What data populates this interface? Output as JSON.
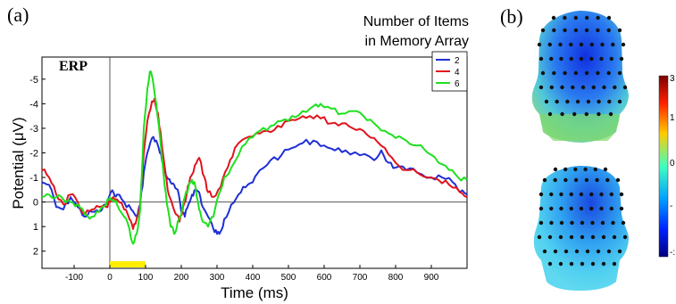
{
  "panels": {
    "a": "(a)",
    "b": "(b)"
  },
  "chart_data": {
    "type": "line",
    "title": "ERP",
    "xlabel": "Time (ms)",
    "ylabel": "Potential (μV)",
    "xlim": [
      -190,
      1000
    ],
    "ylim": [
      2.7,
      -5.9
    ],
    "y_axis_inverted": true,
    "x_ticks": [
      -100,
      0,
      100,
      200,
      300,
      400,
      500,
      600,
      700,
      800,
      900
    ],
    "x_tick_labels": [
      "-100",
      "0",
      "100",
      "200",
      "300",
      "400",
      "500",
      "600",
      "700",
      "800",
      "900"
    ],
    "y_ticks": [
      -5,
      -4,
      -3,
      -2,
      -1,
      0,
      1,
      2
    ],
    "y_tick_labels": [
      "-5",
      "-4",
      "-3",
      "-2",
      "-1",
      "0",
      "1",
      "2"
    ],
    "legend_title": [
      "Number of Items",
      "in Memory Array"
    ],
    "legend_position": "top-right",
    "stimulus_bar": {
      "start": 0,
      "end": 100,
      "color": "#ffee00"
    },
    "series": [
      {
        "name": "2",
        "color": "#1f2fd6",
        "points": [
          [
            -190,
            -0.8
          ],
          [
            -170,
            -0.7
          ],
          [
            -150,
            0.2
          ],
          [
            -130,
            0.3
          ],
          [
            -110,
            -0.2
          ],
          [
            -90,
            0.2
          ],
          [
            -70,
            0.6
          ],
          [
            -50,
            0.4
          ],
          [
            -30,
            0.4
          ],
          [
            -10,
            0.1
          ],
          [
            0,
            -0.3
          ],
          [
            10,
            -0.4
          ],
          [
            20,
            -0.3
          ],
          [
            40,
            0
          ],
          [
            60,
            0.3
          ],
          [
            75,
            0.6
          ],
          [
            85,
            0.1
          ],
          [
            95,
            -1.2
          ],
          [
            105,
            -2.0
          ],
          [
            118,
            -2.6
          ],
          [
            130,
            -2.5
          ],
          [
            140,
            -2.0
          ],
          [
            150,
            -1.6
          ],
          [
            160,
            -1.0
          ],
          [
            170,
            -0.8
          ],
          [
            180,
            -0.7
          ],
          [
            190,
            -0.5
          ],
          [
            200,
            0.4
          ],
          [
            210,
            0.6
          ],
          [
            220,
            0.1
          ],
          [
            230,
            -0.3
          ],
          [
            240,
            -0.5
          ],
          [
            250,
            -0.4
          ],
          [
            260,
            0.2
          ],
          [
            275,
            0.6
          ],
          [
            290,
            1.1
          ],
          [
            300,
            1.3
          ],
          [
            310,
            1.2
          ],
          [
            320,
            0.7
          ],
          [
            340,
            0.1
          ],
          [
            360,
            -0.3
          ],
          [
            380,
            -0.6
          ],
          [
            400,
            -0.8
          ],
          [
            420,
            -1.3
          ],
          [
            450,
            -1.7
          ],
          [
            480,
            -1.9
          ],
          [
            510,
            -2.2
          ],
          [
            540,
            -2.4
          ],
          [
            570,
            -2.5
          ],
          [
            600,
            -2.3
          ],
          [
            630,
            -2.1
          ],
          [
            660,
            -2.1
          ],
          [
            700,
            -1.9
          ],
          [
            740,
            -1.7
          ],
          [
            760,
            -2.1
          ],
          [
            780,
            -1.6
          ],
          [
            800,
            -1.4
          ],
          [
            830,
            -1.3
          ],
          [
            860,
            -1.2
          ],
          [
            900,
            -1.0
          ],
          [
            930,
            -1.0
          ],
          [
            960,
            -0.8
          ],
          [
            980,
            -0.4
          ],
          [
            1000,
            -0.3
          ]
        ]
      },
      {
        "name": "4",
        "color": "#e0141c",
        "points": [
          [
            -190,
            -1.3
          ],
          [
            -170,
            -1.0
          ],
          [
            -150,
            -0.3
          ],
          [
            -130,
            0.1
          ],
          [
            -110,
            -0.3
          ],
          [
            -90,
            0
          ],
          [
            -70,
            0.5
          ],
          [
            -50,
            0.3
          ],
          [
            -30,
            0.2
          ],
          [
            -10,
            0.2
          ],
          [
            0,
            0
          ],
          [
            10,
            -0.2
          ],
          [
            20,
            -0.1
          ],
          [
            40,
            0.3
          ],
          [
            55,
            0.7
          ],
          [
            65,
            1.1
          ],
          [
            75,
            0.7
          ],
          [
            85,
            0.1
          ],
          [
            95,
            -2.0
          ],
          [
            105,
            -3.3
          ],
          [
            118,
            -4.1
          ],
          [
            125,
            -4.2
          ],
          [
            135,
            -3.6
          ],
          [
            145,
            -2.4
          ],
          [
            155,
            -1.2
          ],
          [
            165,
            -0.3
          ],
          [
            175,
            0.1
          ],
          [
            185,
            0.5
          ],
          [
            195,
            0.8
          ],
          [
            205,
            0.2
          ],
          [
            215,
            -0.3
          ],
          [
            225,
            -1.0
          ],
          [
            238,
            -1.5
          ],
          [
            250,
            -1.8
          ],
          [
            265,
            -1.0
          ],
          [
            275,
            -0.4
          ],
          [
            290,
            -0.2
          ],
          [
            310,
            -0.6
          ],
          [
            330,
            -1.4
          ],
          [
            350,
            -2.2
          ],
          [
            380,
            -2.6
          ],
          [
            410,
            -2.8
          ],
          [
            440,
            -2.9
          ],
          [
            470,
            -3.1
          ],
          [
            500,
            -3.3
          ],
          [
            530,
            -3.4
          ],
          [
            560,
            -3.5
          ],
          [
            590,
            -3.4
          ],
          [
            620,
            -3.2
          ],
          [
            650,
            -3.2
          ],
          [
            680,
            -3.0
          ],
          [
            710,
            -2.9
          ],
          [
            740,
            -2.6
          ],
          [
            770,
            -2.2
          ],
          [
            800,
            -1.6
          ],
          [
            830,
            -1.3
          ],
          [
            860,
            -1.2
          ],
          [
            890,
            -1.0
          ],
          [
            920,
            -0.9
          ],
          [
            950,
            -0.7
          ],
          [
            980,
            -0.4
          ],
          [
            1000,
            -0.2
          ]
        ]
      },
      {
        "name": "6",
        "color": "#1ee01e",
        "points": [
          [
            -190,
            -0.2
          ],
          [
            -170,
            -0.3
          ],
          [
            -150,
            -0.2
          ],
          [
            -130,
            -0.1
          ],
          [
            -110,
            0
          ],
          [
            -90,
            0.1
          ],
          [
            -70,
            0.5
          ],
          [
            -50,
            0.6
          ],
          [
            -30,
            0.4
          ],
          [
            -10,
            0.1
          ],
          [
            0,
            -0.2
          ],
          [
            10,
            -0.1
          ],
          [
            20,
            0.1
          ],
          [
            40,
            0.6
          ],
          [
            55,
            1.1
          ],
          [
            65,
            1.7
          ],
          [
            75,
            1.3
          ],
          [
            85,
            0.3
          ],
          [
            95,
            -3.0
          ],
          [
            105,
            -4.6
          ],
          [
            112,
            -5.3
          ],
          [
            120,
            -5.0
          ],
          [
            130,
            -4.0
          ],
          [
            140,
            -2.7
          ],
          [
            150,
            -1.2
          ],
          [
            160,
            0.1
          ],
          [
            170,
            1.0
          ],
          [
            180,
            1.3
          ],
          [
            190,
            0.8
          ],
          [
            200,
            0.5
          ],
          [
            210,
            -0.2
          ],
          [
            220,
            -0.6
          ],
          [
            230,
            -0.9
          ],
          [
            240,
            -0.6
          ],
          [
            250,
            0.3
          ],
          [
            260,
            0.8
          ],
          [
            275,
            1.0
          ],
          [
            290,
            0.6
          ],
          [
            305,
            -0.3
          ],
          [
            320,
            -1.0
          ],
          [
            340,
            -1.4
          ],
          [
            360,
            -1.9
          ],
          [
            390,
            -2.6
          ],
          [
            420,
            -2.9
          ],
          [
            450,
            -3.1
          ],
          [
            480,
            -3.3
          ],
          [
            510,
            -3.5
          ],
          [
            540,
            -3.7
          ],
          [
            570,
            -3.9
          ],
          [
            590,
            -4.0
          ],
          [
            620,
            -3.8
          ],
          [
            650,
            -3.6
          ],
          [
            680,
            -3.7
          ],
          [
            710,
            -3.5
          ],
          [
            740,
            -3.2
          ],
          [
            770,
            -2.9
          ],
          [
            800,
            -2.6
          ],
          [
            830,
            -2.5
          ],
          [
            860,
            -2.3
          ],
          [
            890,
            -2.0
          ],
          [
            920,
            -1.6
          ],
          [
            950,
            -1.3
          ],
          [
            975,
            -1.0
          ],
          [
            1000,
            -0.9
          ]
        ]
      }
    ]
  },
  "colorbar": {
    "tick_labels": [
      "3",
      "1",
      "0",
      "-",
      "-:"
    ]
  }
}
